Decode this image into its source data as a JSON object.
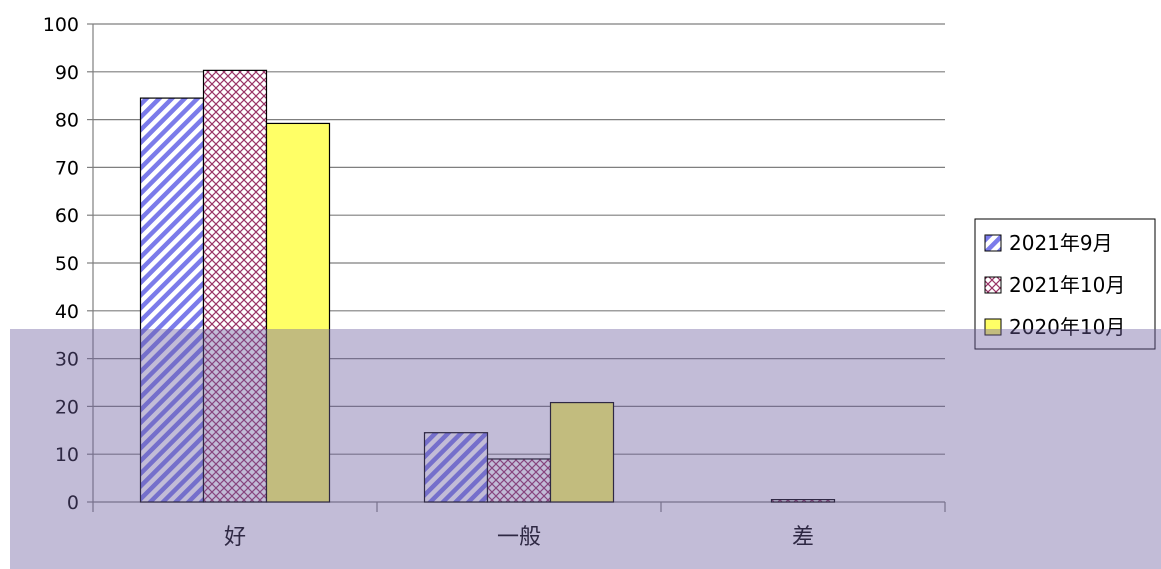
{
  "chart_data": {
    "type": "bar",
    "categories": [
      "好",
      "一般",
      "差"
    ],
    "series": [
      {
        "name": "2021年9月",
        "values": [
          84.5,
          14.5,
          0
        ],
        "color": "#7b7bea",
        "pattern": "diagonal-stripes"
      },
      {
        "name": "2021年10月",
        "values": [
          90.3,
          9.0,
          0.5
        ],
        "color": "#993366",
        "pattern": "crosshatch"
      },
      {
        "name": "2020年10月",
        "values": [
          79.2,
          20.8,
          0
        ],
        "color": "#ffff66",
        "pattern": "solid"
      }
    ],
    "y_ticks": [
      "0",
      "10",
      "20",
      "30",
      "40",
      "50",
      "60",
      "70",
      "80",
      "90",
      "100"
    ],
    "ylim": [
      0,
      100
    ],
    "grid": true,
    "legend_position": "right"
  },
  "overlay": {
    "color": "#6e5fa0"
  }
}
